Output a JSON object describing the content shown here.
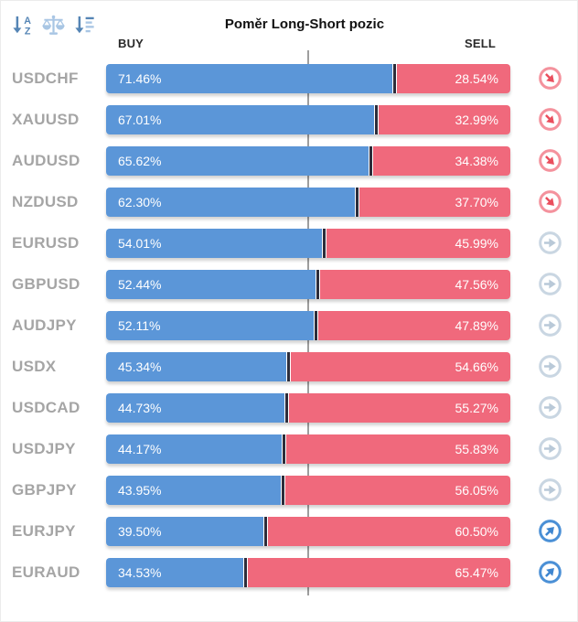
{
  "title": "Poměr Long-Short pozic",
  "columns": {
    "buy": "BUY",
    "sell": "SELL"
  },
  "toolbar": {
    "icons": [
      "sort-alphabetical-icon",
      "balance-scale-icon",
      "sort-amount-icon"
    ]
  },
  "colors": {
    "buy_bar": "#5b96d8",
    "sell_bar": "#f0697c",
    "bar_divider": "#2d2d3b",
    "pair_label": "#a5a5a5",
    "center_line": "#9e9e9e",
    "trend_up": "#3f86d0",
    "trend_neutral": "#b9c9d8",
    "trend_down": "#ea4f5e",
    "toolbar_icon_dark": "#5585b5",
    "toolbar_icon_light": "#a9c6e4"
  },
  "chart_data": {
    "type": "bar",
    "orientation": "horizontal",
    "stacked": true,
    "title": "Poměr Long-Short pozic",
    "categories": [
      "USDCHF",
      "XAUUSD",
      "AUDUSD",
      "NZDUSD",
      "EURUSD",
      "GBPUSD",
      "AUDJPY",
      "USDX",
      "USDCAD",
      "USDJPY",
      "GBPJPY",
      "EURJPY",
      "EURAUD"
    ],
    "series": [
      {
        "name": "BUY",
        "color": "#5b96d8",
        "values": [
          71.46,
          67.01,
          65.62,
          62.3,
          54.01,
          52.44,
          52.11,
          45.34,
          44.73,
          44.17,
          43.95,
          39.5,
          34.53
        ]
      },
      {
        "name": "SELL",
        "color": "#f0697c",
        "values": [
          28.54,
          32.99,
          34.38,
          37.7,
          45.99,
          47.56,
          47.89,
          54.66,
          55.27,
          55.83,
          56.05,
          60.5,
          65.47
        ]
      }
    ],
    "xlim": [
      0,
      100
    ],
    "center_reference_line": 50,
    "value_label_format": "0.00%",
    "trend_indicators": [
      "down",
      "down",
      "down",
      "down",
      "neutral",
      "neutral",
      "neutral",
      "neutral",
      "neutral",
      "neutral",
      "neutral",
      "up",
      "up"
    ],
    "legend_position": "top",
    "grid": false
  }
}
